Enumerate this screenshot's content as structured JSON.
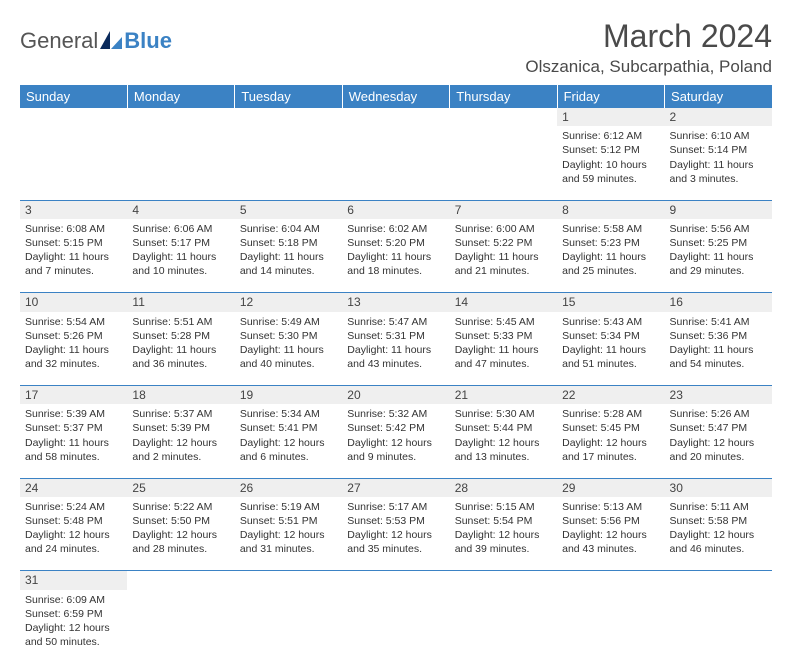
{
  "brand": {
    "part1": "General",
    "part2": "Blue"
  },
  "title": "March 2024",
  "location": "Olszanica, Subcarpathia, Poland",
  "days": [
    "Sunday",
    "Monday",
    "Tuesday",
    "Wednesday",
    "Thursday",
    "Friday",
    "Saturday"
  ],
  "colors": {
    "header_bg": "#3b82c4",
    "daynum_bg": "#efefef",
    "border": "#3b82c4"
  },
  "weeks": [
    [
      null,
      null,
      null,
      null,
      null,
      {
        "n": "1",
        "sr": "6:12 AM",
        "ss": "5:12 PM",
        "dl": "10 hours and 59 minutes."
      },
      {
        "n": "2",
        "sr": "6:10 AM",
        "ss": "5:14 PM",
        "dl": "11 hours and 3 minutes."
      }
    ],
    [
      {
        "n": "3",
        "sr": "6:08 AM",
        "ss": "5:15 PM",
        "dl": "11 hours and 7 minutes."
      },
      {
        "n": "4",
        "sr": "6:06 AM",
        "ss": "5:17 PM",
        "dl": "11 hours and 10 minutes."
      },
      {
        "n": "5",
        "sr": "6:04 AM",
        "ss": "5:18 PM",
        "dl": "11 hours and 14 minutes."
      },
      {
        "n": "6",
        "sr": "6:02 AM",
        "ss": "5:20 PM",
        "dl": "11 hours and 18 minutes."
      },
      {
        "n": "7",
        "sr": "6:00 AM",
        "ss": "5:22 PM",
        "dl": "11 hours and 21 minutes."
      },
      {
        "n": "8",
        "sr": "5:58 AM",
        "ss": "5:23 PM",
        "dl": "11 hours and 25 minutes."
      },
      {
        "n": "9",
        "sr": "5:56 AM",
        "ss": "5:25 PM",
        "dl": "11 hours and 29 minutes."
      }
    ],
    [
      {
        "n": "10",
        "sr": "5:54 AM",
        "ss": "5:26 PM",
        "dl": "11 hours and 32 minutes."
      },
      {
        "n": "11",
        "sr": "5:51 AM",
        "ss": "5:28 PM",
        "dl": "11 hours and 36 minutes."
      },
      {
        "n": "12",
        "sr": "5:49 AM",
        "ss": "5:30 PM",
        "dl": "11 hours and 40 minutes."
      },
      {
        "n": "13",
        "sr": "5:47 AM",
        "ss": "5:31 PM",
        "dl": "11 hours and 43 minutes."
      },
      {
        "n": "14",
        "sr": "5:45 AM",
        "ss": "5:33 PM",
        "dl": "11 hours and 47 minutes."
      },
      {
        "n": "15",
        "sr": "5:43 AM",
        "ss": "5:34 PM",
        "dl": "11 hours and 51 minutes."
      },
      {
        "n": "16",
        "sr": "5:41 AM",
        "ss": "5:36 PM",
        "dl": "11 hours and 54 minutes."
      }
    ],
    [
      {
        "n": "17",
        "sr": "5:39 AM",
        "ss": "5:37 PM",
        "dl": "11 hours and 58 minutes."
      },
      {
        "n": "18",
        "sr": "5:37 AM",
        "ss": "5:39 PM",
        "dl": "12 hours and 2 minutes."
      },
      {
        "n": "19",
        "sr": "5:34 AM",
        "ss": "5:41 PM",
        "dl": "12 hours and 6 minutes."
      },
      {
        "n": "20",
        "sr": "5:32 AM",
        "ss": "5:42 PM",
        "dl": "12 hours and 9 minutes."
      },
      {
        "n": "21",
        "sr": "5:30 AM",
        "ss": "5:44 PM",
        "dl": "12 hours and 13 minutes."
      },
      {
        "n": "22",
        "sr": "5:28 AM",
        "ss": "5:45 PM",
        "dl": "12 hours and 17 minutes."
      },
      {
        "n": "23",
        "sr": "5:26 AM",
        "ss": "5:47 PM",
        "dl": "12 hours and 20 minutes."
      }
    ],
    [
      {
        "n": "24",
        "sr": "5:24 AM",
        "ss": "5:48 PM",
        "dl": "12 hours and 24 minutes."
      },
      {
        "n": "25",
        "sr": "5:22 AM",
        "ss": "5:50 PM",
        "dl": "12 hours and 28 minutes."
      },
      {
        "n": "26",
        "sr": "5:19 AM",
        "ss": "5:51 PM",
        "dl": "12 hours and 31 minutes."
      },
      {
        "n": "27",
        "sr": "5:17 AM",
        "ss": "5:53 PM",
        "dl": "12 hours and 35 minutes."
      },
      {
        "n": "28",
        "sr": "5:15 AM",
        "ss": "5:54 PM",
        "dl": "12 hours and 39 minutes."
      },
      {
        "n": "29",
        "sr": "5:13 AM",
        "ss": "5:56 PM",
        "dl": "12 hours and 43 minutes."
      },
      {
        "n": "30",
        "sr": "5:11 AM",
        "ss": "5:58 PM",
        "dl": "12 hours and 46 minutes."
      }
    ],
    [
      {
        "n": "31",
        "sr": "6:09 AM",
        "ss": "6:59 PM",
        "dl": "12 hours and 50 minutes."
      },
      null,
      null,
      null,
      null,
      null,
      null
    ]
  ]
}
